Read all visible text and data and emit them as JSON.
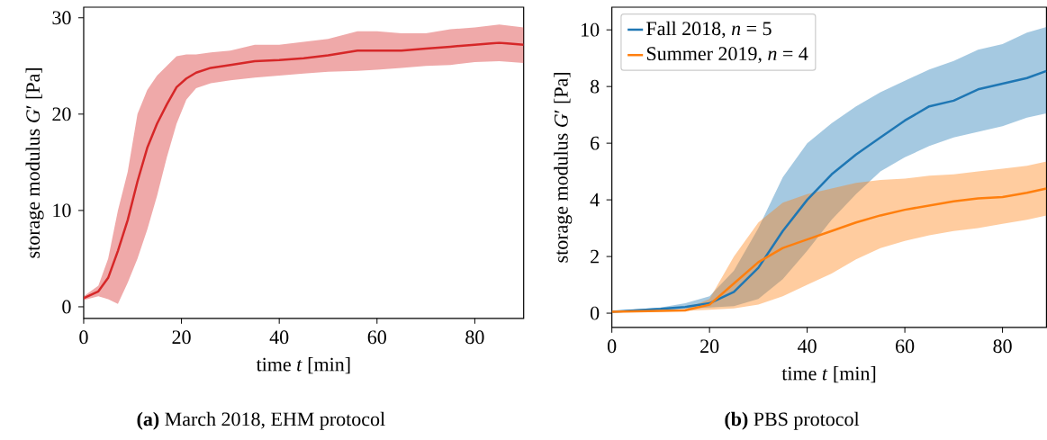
{
  "chart_data": [
    {
      "type": "line",
      "xlabel": "time *t* [min]",
      "ylabel": "storage modulus *G*′ [Pa]",
      "annotations": [
        "**(a)** March 2018, EHM protocol"
      ],
      "x": [
        0,
        3,
        5,
        7,
        9,
        11,
        13,
        15,
        17,
        19,
        21,
        23,
        26,
        30,
        35,
        40,
        45,
        50,
        56,
        60,
        65,
        70,
        75,
        80,
        85,
        90
      ],
      "xlim": [
        0,
        90
      ],
      "ylim": [
        -1.2,
        31.1
      ],
      "xticks": [
        0,
        20,
        40,
        60,
        80
      ],
      "yticks": [
        0,
        10,
        20,
        30
      ],
      "series": [
        {
          "color": "#d62728",
          "values": [
            0.9,
            1.6,
            3.0,
            5.8,
            9,
            13,
            16.5,
            19,
            21,
            22.8,
            23.7,
            24.3,
            24.8,
            25.1,
            25.5,
            25.6,
            25.8,
            26.1,
            26.6,
            26.6,
            26.6,
            26.8,
            27.0,
            27.2,
            27.4,
            27.2
          ],
          "lower": [
            0.7,
            1.1,
            0.8,
            0.3,
            2.5,
            5,
            8,
            11.5,
            15.5,
            19,
            21.5,
            22.7,
            23.2,
            23.5,
            23.8,
            24,
            24.2,
            24.4,
            24.5,
            24.6,
            24.8,
            25,
            25.1,
            25.4,
            25.5,
            25.3
          ],
          "upper": [
            1.1,
            2.2,
            5,
            10,
            14,
            20,
            22.5,
            24,
            25,
            26,
            26.2,
            26.2,
            26.4,
            26.6,
            27.2,
            27.2,
            27.5,
            27.8,
            28.6,
            28.6,
            28.4,
            28.4,
            28.8,
            29,
            29.3,
            29
          ]
        }
      ]
    },
    {
      "type": "line",
      "xlabel": "time *t* [min]",
      "ylabel": "storage modulus *G*′ [Pa]",
      "annotations": [
        "**(b)** PBS protocol"
      ],
      "legend": "top left",
      "x": [
        0,
        10,
        15,
        20,
        25,
        30,
        35,
        40,
        45,
        50,
        55,
        60,
        65,
        70,
        75,
        80,
        85,
        89
      ],
      "xlim": [
        0,
        89
      ],
      "ylim": [
        -0.5,
        10.8
      ],
      "xticks": [
        0,
        20,
        40,
        60,
        80
      ],
      "yticks": [
        0,
        2,
        4,
        6,
        8,
        10
      ],
      "series": [
        {
          "name": "Fall 2018, *n* = 5",
          "color": "#1f77b4",
          "values": [
            0.05,
            0.15,
            0.22,
            0.35,
            0.75,
            1.6,
            2.9,
            4.0,
            4.9,
            5.6,
            6.2,
            6.8,
            7.3,
            7.5,
            7.9,
            8.1,
            8.3,
            8.55
          ],
          "lower": [
            0.03,
            0.1,
            0.15,
            0.2,
            0.25,
            0.5,
            1.2,
            2.2,
            3.3,
            4.2,
            5,
            5.5,
            5.9,
            6.2,
            6.4,
            6.6,
            6.9,
            7.05
          ],
          "upper": [
            0.07,
            0.2,
            0.35,
            0.6,
            1.5,
            3,
            4.8,
            6.0,
            6.7,
            7.3,
            7.8,
            8.2,
            8.6,
            8.9,
            9.3,
            9.5,
            9.9,
            10.1
          ]
        },
        {
          "name": "Summer 2019, *n* = 4",
          "color": "#ff7f0e",
          "values": [
            0.05,
            0.08,
            0.1,
            0.3,
            1.05,
            1.8,
            2.3,
            2.6,
            2.9,
            3.2,
            3.45,
            3.65,
            3.8,
            3.95,
            4.05,
            4.1,
            4.25,
            4.4
          ],
          "lower": [
            0.04,
            0.06,
            0.08,
            0.12,
            0.17,
            0.3,
            0.6,
            1.0,
            1.4,
            1.9,
            2.3,
            2.55,
            2.75,
            2.9,
            3.0,
            3.15,
            3.3,
            3.45
          ],
          "upper": [
            0.07,
            0.1,
            0.15,
            0.5,
            2.0,
            3.2,
            3.9,
            4.2,
            4.4,
            4.6,
            4.7,
            4.75,
            4.85,
            4.9,
            5.0,
            5.1,
            5.2,
            5.35
          ]
        }
      ]
    }
  ]
}
